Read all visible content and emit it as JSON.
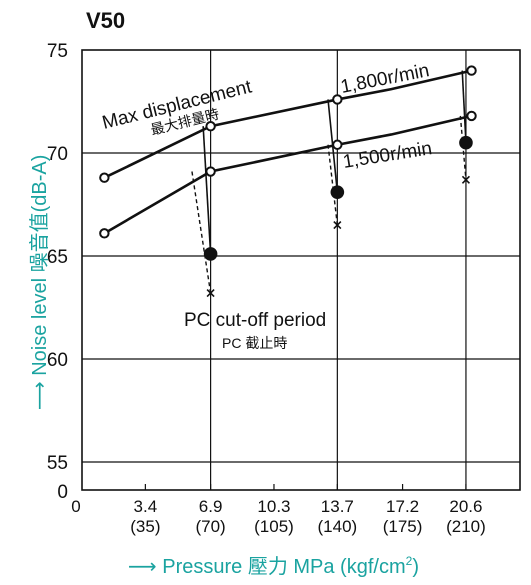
{
  "chart_data": {
    "type": "line",
    "title": "V50",
    "xlabel": "Pressure 壓力 MPa (kgf/cm²)",
    "xlabel_parts": {
      "main": "Pressure 壓力 MPa (kgf/cm",
      "sup": "2",
      "close": ")"
    },
    "ylabel": "Noise level 噪音值(dB-A)",
    "axis_color": "#1aa3a0",
    "xlim": [
      0,
      23.5
    ],
    "ylim": [
      50,
      75
    ],
    "x_ticks": [
      {
        "value": 3.4,
        "mpa": "3.4",
        "kgf": "(35)"
      },
      {
        "value": 6.9,
        "mpa": "6.9",
        "kgf": "(70)"
      },
      {
        "value": 10.3,
        "mpa": "10.3",
        "kgf": "(105)"
      },
      {
        "value": 13.7,
        "mpa": "13.7",
        "kgf": "(140)"
      },
      {
        "value": 17.2,
        "mpa": "17.2",
        "kgf": "(175)"
      },
      {
        "value": 20.6,
        "mpa": "20.6",
        "kgf": "(210)"
      }
    ],
    "y_ticks": [
      {
        "value": 75,
        "label": "75"
      },
      {
        "value": 70,
        "label": "70"
      },
      {
        "value": 65,
        "label": "65"
      },
      {
        "value": 60,
        "label": "60"
      },
      {
        "value": 55,
        "label": "55"
      }
    ],
    "origin_labels": {
      "y": "0",
      "x": "0"
    },
    "grid": true,
    "series": [
      {
        "name": "1,800r/min",
        "marker": "open-circle",
        "x": [
          1.2,
          6.9,
          13.7,
          16.6,
          20.9
        ],
        "y": [
          68.8,
          71.3,
          72.6,
          73.1,
          74.0
        ]
      },
      {
        "name": "1,500r/min",
        "marker": "open-circle",
        "x": [
          1.2,
          6.9,
          13.7,
          16.6,
          20.9
        ],
        "y": [
          66.1,
          69.1,
          70.4,
          70.9,
          71.8
        ]
      }
    ],
    "cutoff_points": {
      "marker": "filled-circle",
      "x": [
        6.9,
        13.7,
        20.6
      ],
      "y": [
        65.1,
        68.1,
        70.5
      ]
    },
    "cutoff_lines_solid": [
      {
        "from": [
          6.5,
          71.3
        ],
        "to": [
          6.9,
          65.1
        ]
      },
      {
        "from": [
          13.2,
          72.6
        ],
        "to": [
          13.7,
          68.1
        ]
      },
      {
        "from": [
          20.4,
          74.0
        ],
        "to": [
          20.6,
          70.5
        ]
      }
    ],
    "cutoff_lines_dashed": [
      {
        "from": [
          5.9,
          69.1
        ],
        "to": [
          6.9,
          63.2
        ]
      },
      {
        "from": [
          13.2,
          70.4
        ],
        "to": [
          13.7,
          66.5
        ]
      },
      {
        "from": [
          20.3,
          71.8
        ],
        "to": [
          20.6,
          68.7
        ]
      }
    ],
    "x_marks": {
      "x": [
        6.9,
        13.7,
        20.6
      ],
      "y": [
        63.2,
        66.5,
        68.7
      ],
      "symbol": "x"
    },
    "annotations": {
      "max_disp": "Max displacement",
      "max_disp_cn": "最大排量時",
      "rpm_1800": "1,800r/min",
      "rpm_1500": "1,500r/min",
      "pc_cutoff": "PC cut-off period",
      "pc_cutoff_cn": "PC 截止時"
    }
  }
}
